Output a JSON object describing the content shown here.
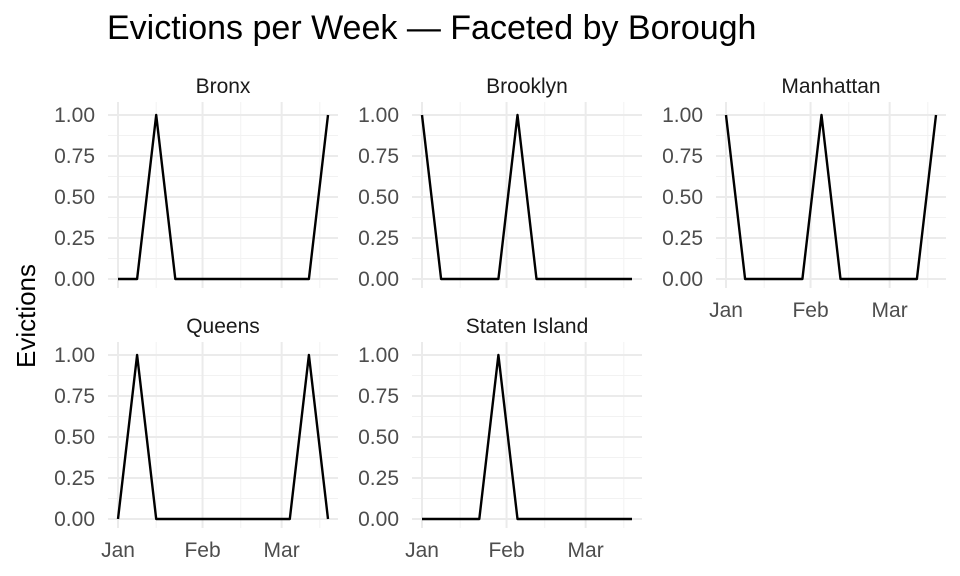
{
  "chart_data": {
    "type": "line",
    "title": "Evictions per Week — Faceted by Borough",
    "ylabel": "Evictions",
    "xlabel": "",
    "x_ticks": [
      "Jan",
      "Feb",
      "Mar"
    ],
    "y_ticks": [
      "0.00",
      "0.25",
      "0.50",
      "0.75",
      "1.00"
    ],
    "ylim": [
      0,
      1
    ],
    "x": [
      "2024-01-01",
      "2024-01-08",
      "2024-01-15",
      "2024-01-22",
      "2024-01-29",
      "2024-02-05",
      "2024-02-12",
      "2024-02-19",
      "2024-02-26",
      "2024-03-04",
      "2024-03-11",
      "2024-03-18"
    ],
    "grid": true,
    "facets": [
      {
        "name": "Bronx",
        "values": [
          0,
          0,
          1,
          0,
          0,
          0,
          0,
          0,
          0,
          0,
          0,
          1
        ]
      },
      {
        "name": "Brooklyn",
        "values": [
          1,
          0,
          0,
          0,
          0,
          1,
          0,
          0,
          0,
          0,
          0,
          0
        ]
      },
      {
        "name": "Manhattan",
        "values": [
          1,
          0,
          0,
          0,
          0,
          1,
          0,
          0,
          0,
          0,
          0,
          1
        ]
      },
      {
        "name": "Queens",
        "values": [
          0,
          1,
          0,
          0,
          0,
          0,
          0,
          0,
          0,
          0,
          1,
          0
        ]
      },
      {
        "name": "Staten Island",
        "values": [
          0,
          0,
          0,
          0,
          1,
          0,
          0,
          0,
          0,
          0,
          0,
          0
        ]
      }
    ]
  },
  "colors": {
    "line": "#000000",
    "grid": "#ebebeb"
  }
}
